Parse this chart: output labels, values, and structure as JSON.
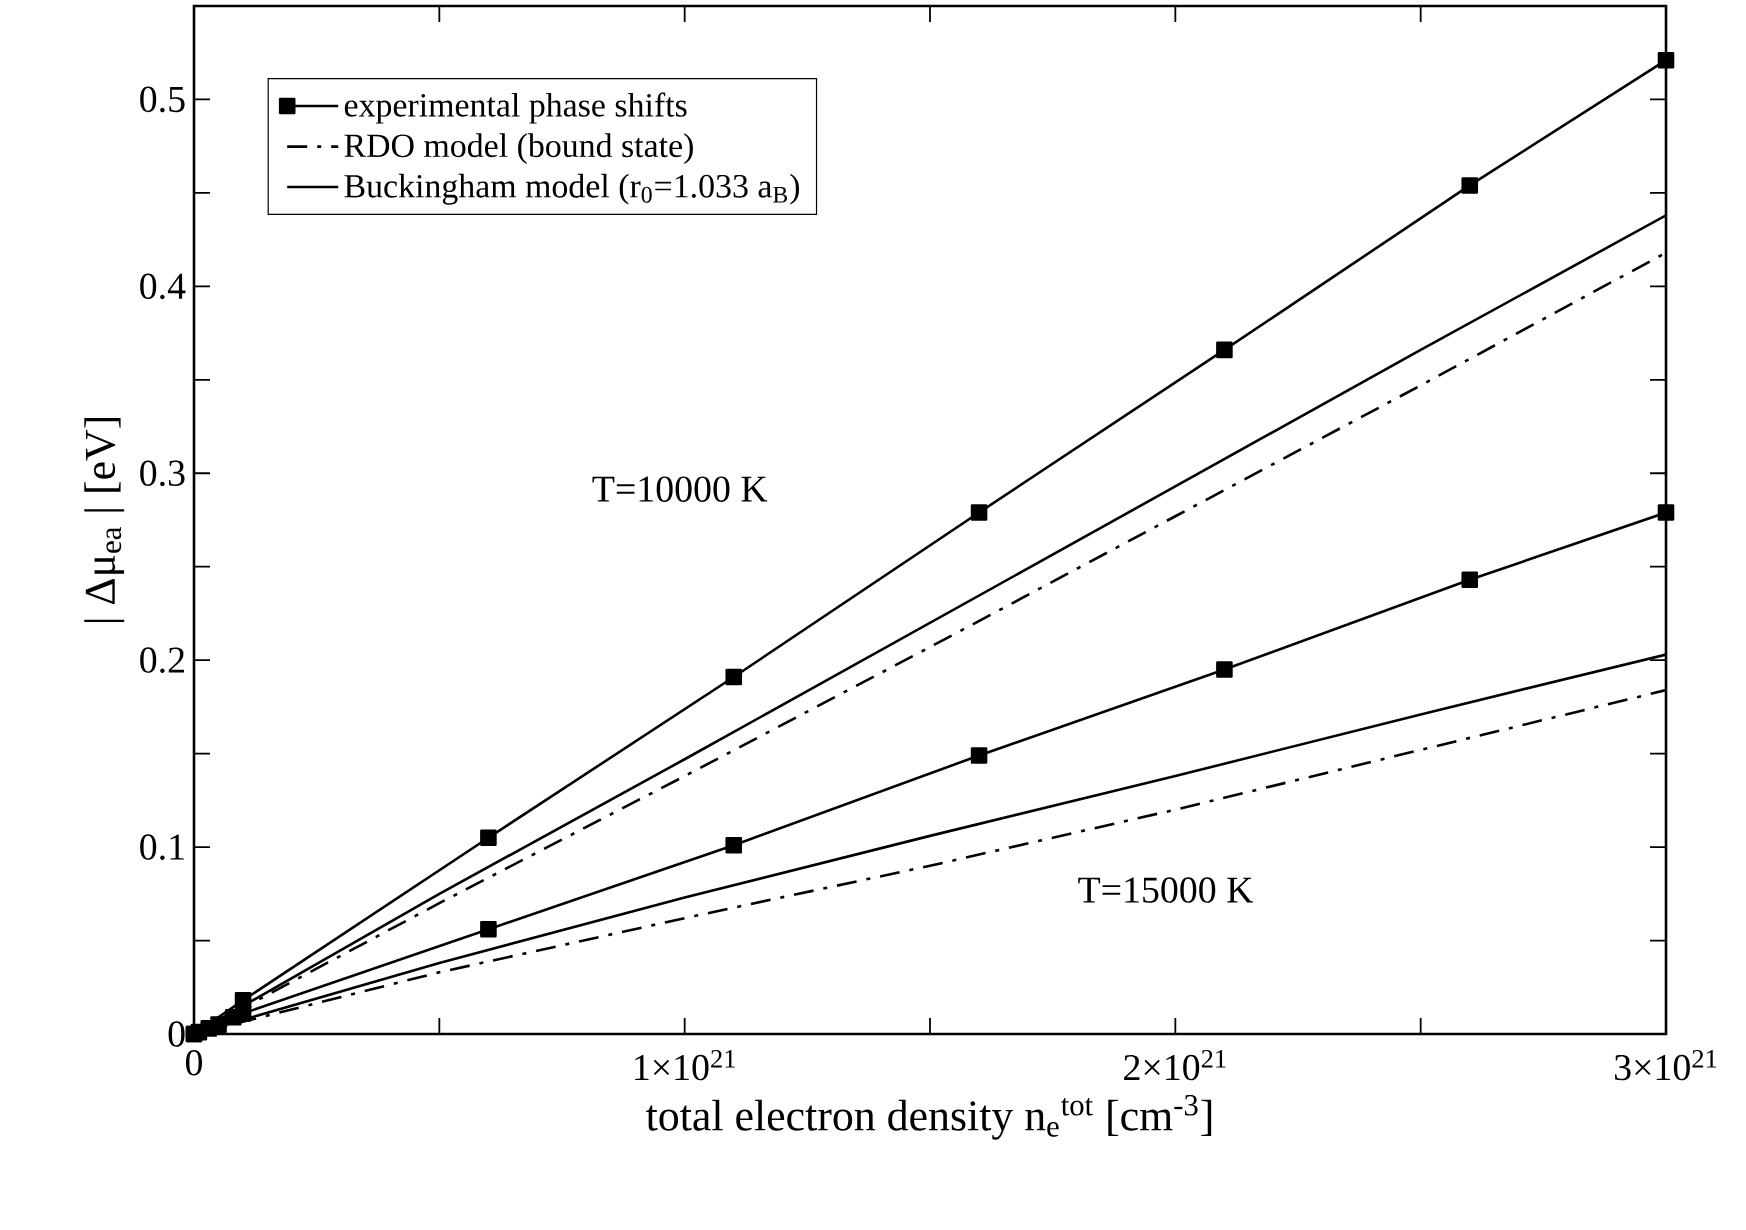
{
  "chart_data": {
    "type": "line",
    "xlabel": "total electron density n$_{e}$$^{tot}$ [cm$^{-3}$]",
    "ylabel": "| Δμ$_{ea}$ |   [eV]",
    "xlim": [
      0,
      3e+21
    ],
    "ylim": [
      0,
      0.55
    ],
    "xticks": [
      0,
      {
        "value": 5e+20,
        "label": null
      },
      {
        "value": 1e+21,
        "label": "1×10$^{21}$"
      },
      {
        "value": 1.5e+21,
        "label": null
      },
      {
        "value": 2e+21,
        "label": "2×10$^{21}$"
      },
      {
        "value": 2.5e+21,
        "label": null
      },
      {
        "value": 3e+21,
        "label": "3×10$^{21}$"
      }
    ],
    "yticks": [
      0,
      {
        "value": 0.05,
        "label": null
      },
      0.1,
      {
        "value": 0.15,
        "label": null
      },
      0.2,
      {
        "value": 0.25,
        "label": null
      },
      0.3,
      {
        "value": 0.35,
        "label": null
      },
      0.4,
      {
        "value": 0.45,
        "label": null
      },
      0.5
    ],
    "grid": false,
    "legend": "top left",
    "series": [
      {
        "name": "experimental phase shifts",
        "color": "#000000",
        "marker": "square",
        "line_style": "solid",
        "x": [
          0,
          1e+19,
          3e+19,
          5e+19,
          8e+19,
          1e+20,
          6e+20,
          1.1e+21,
          1.6e+21,
          2.1e+21,
          2.6e+21,
          3e+21
        ],
        "values": [
          0,
          null,
          null,
          null,
          null,
          0.018,
          0.105,
          0.191,
          0.279,
          0.366,
          0.454,
          0.521
        ]
      },
      {
        "color": "#000000",
        "marker": "square",
        "line_style": "solid",
        "x": [
          0,
          1e+19,
          3e+19,
          5e+19,
          8e+19,
          1e+20,
          6e+20,
          1.1e+21,
          1.6e+21,
          2.1e+21,
          2.6e+21,
          3e+21
        ],
        "values": [
          0,
          0.001,
          0.003,
          0.005,
          0.009,
          0.011,
          0.056,
          0.101,
          0.149,
          0.195,
          0.243,
          0.279
        ]
      },
      {
        "name": "RDO model (bound state)",
        "color": "#000000",
        "marker": "none",
        "line_style": "dashdot",
        "x": [
          0,
          5e+20,
          1e+21,
          1.5e+21,
          2e+21,
          2.5e+21,
          3e+21
        ],
        "values": [
          0,
          0.07,
          0.138,
          0.207,
          0.277,
          0.347,
          0.418
        ]
      },
      {
        "color": "#000000",
        "marker": "none",
        "line_style": "dashdot",
        "x": [
          0,
          5e+20,
          1e+21,
          1.5e+21,
          2e+21,
          2.5e+21,
          3e+21
        ],
        "values": [
          0,
          0.033,
          0.062,
          0.09,
          0.12,
          0.152,
          0.184
        ]
      },
      {
        "name": "Buckingham model (r$_{0}$=1.033 a$_{B}$)",
        "color": "#000000",
        "marker": "none",
        "line_style": "solid",
        "x": [
          0,
          5e+20,
          1e+21,
          1.5e+21,
          2e+21,
          2.5e+21,
          3e+21
        ],
        "values": [
          0,
          0.075,
          0.147,
          0.22,
          0.293,
          0.366,
          0.438
        ]
      },
      {
        "color": "#000000",
        "marker": "none",
        "line_style": "solid",
        "x": [
          0,
          5e+20,
          1e+21,
          1.5e+21,
          2e+21,
          2.5e+21,
          3e+21
        ],
        "values": [
          0,
          0.038,
          0.073,
          0.106,
          0.138,
          0.171,
          0.203
        ]
      }
    ],
    "annotations": [
      "T=10000 K",
      "T=15000 K"
    ]
  }
}
